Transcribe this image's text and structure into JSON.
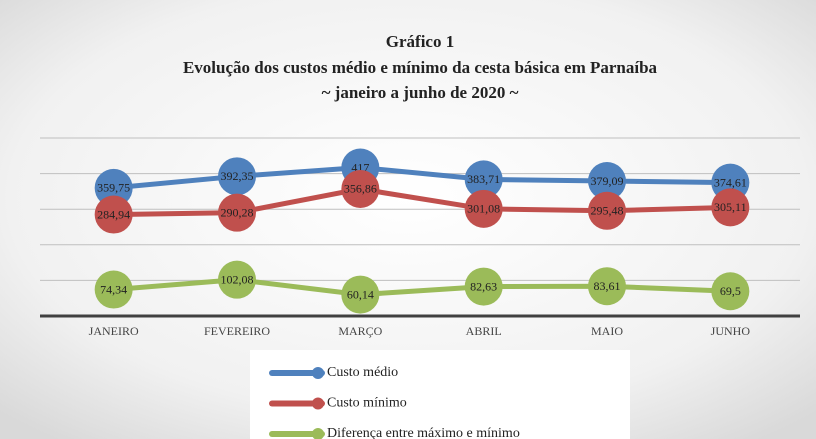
{
  "chart_data": {
    "type": "line",
    "title": "Gráfico 1",
    "subtitle": "Evolução dos custos médio e mínimo da cesta básica em Parnaíba",
    "subtitle2": "~ janeiro a junho de 2020 ~",
    "categories": [
      "JANEIRO",
      "FEVEREIRO",
      "MARÇO",
      "ABRIL",
      "MAIO",
      "JUNHO"
    ],
    "ylim": [
      0,
      500
    ],
    "yticks": [
      0,
      100,
      200,
      300,
      400,
      500
    ],
    "grid": true,
    "series": [
      {
        "name": "Custo médio",
        "color": "#4f81bd",
        "values": [
          359.75,
          392.35,
          417,
          383.71,
          379.09,
          374.61
        ],
        "value_labels": [
          "359,75",
          "392,35",
          "417",
          "383,71",
          "379,09",
          "374,61"
        ]
      },
      {
        "name": "Custo mínimo",
        "color": "#c0504d",
        "values": [
          284.94,
          290.28,
          356.86,
          301.08,
          295.48,
          305.11
        ],
        "value_labels": [
          "284,94",
          "290,28",
          "356,86",
          "301,08",
          "295,48",
          "305,11"
        ]
      },
      {
        "name": "Diferença entre máximo e mínimo",
        "color": "#9bbb59",
        "values": [
          74.34,
          102.08,
          60.14,
          82.63,
          83.61,
          69.5
        ],
        "value_labels": [
          "74,34",
          "102,08",
          "60,14",
          "82,63",
          "83,61",
          "69,5"
        ]
      }
    ]
  }
}
